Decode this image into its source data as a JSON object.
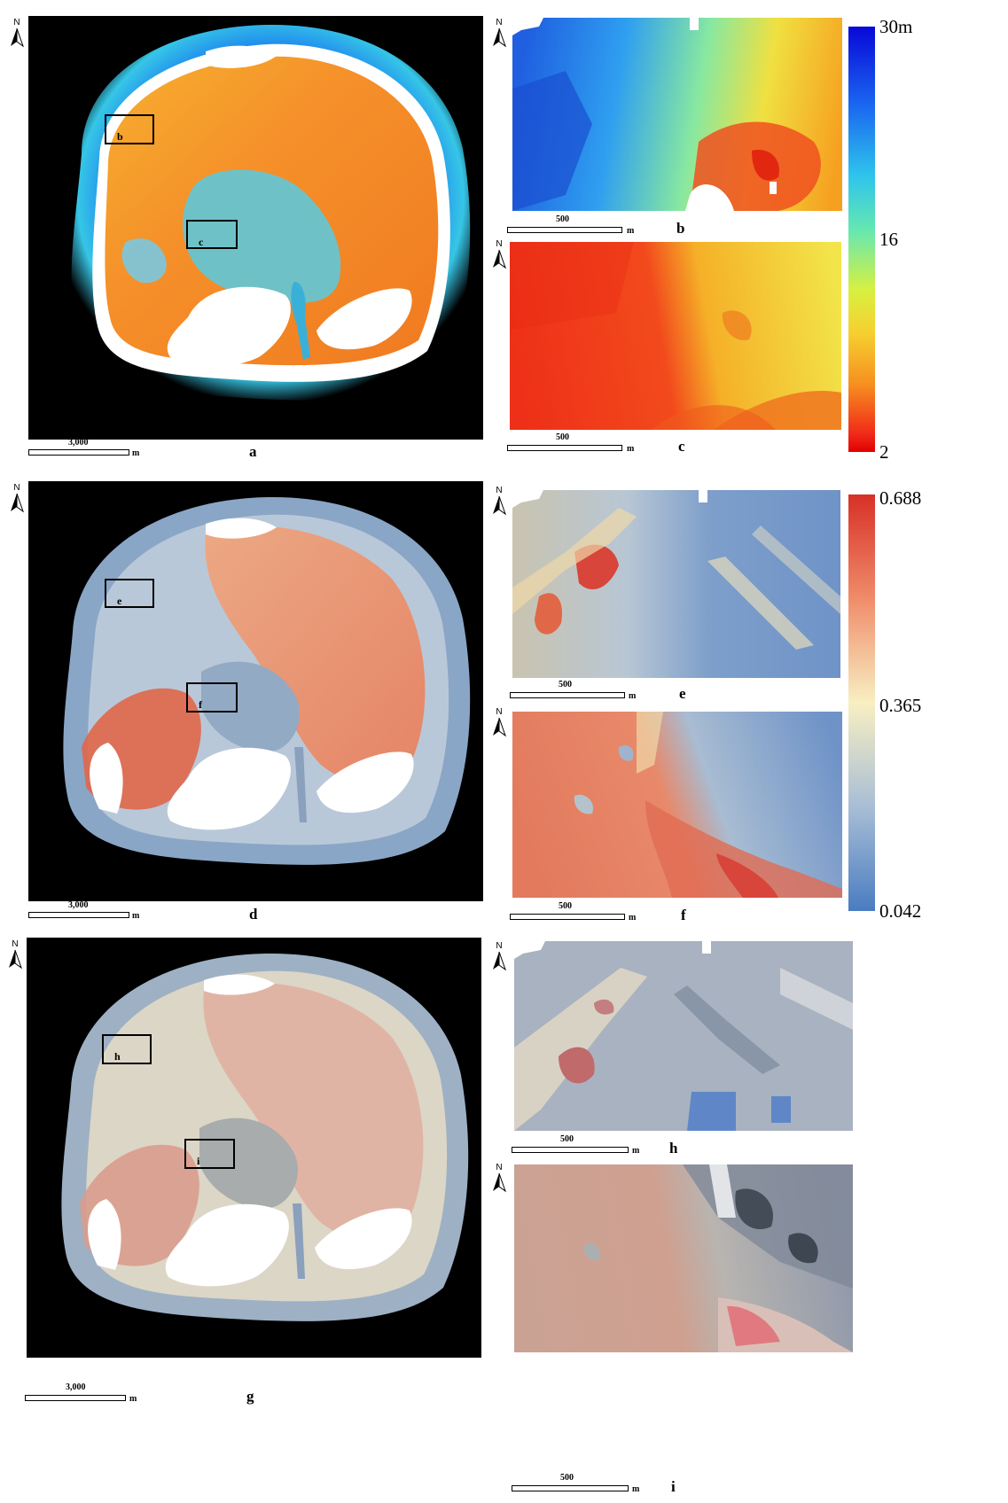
{
  "panels": {
    "a": "a",
    "b": "b",
    "c": "c",
    "d": "d",
    "e": "e",
    "f": "f",
    "g": "g",
    "h": "h",
    "i": "i"
  },
  "scales": {
    "overview": {
      "value": "3,000",
      "unit": "m"
    },
    "inset": {
      "value": "500",
      "unit": "m"
    }
  },
  "north_label": "N",
  "legend_depth": {
    "max": "30m",
    "mid": "16",
    "min": "2"
  },
  "legend_index": {
    "max": "0.688",
    "mid": "0.365",
    "min": "0.042"
  },
  "colors": {
    "background": "#000000",
    "land": "#ffffff",
    "depth_ramp": [
      "#0a0ad6",
      "#1e7cf0",
      "#30d0e8",
      "#98f08a",
      "#f0f040",
      "#f8a020",
      "#f0301a",
      "#e00000"
    ],
    "index_ramp": [
      "#3a6fb8",
      "#9fb8d2",
      "#f6f0c2",
      "#f3a57c",
      "#d73027"
    ]
  },
  "icons": {
    "north": "north-arrow-icon"
  }
}
